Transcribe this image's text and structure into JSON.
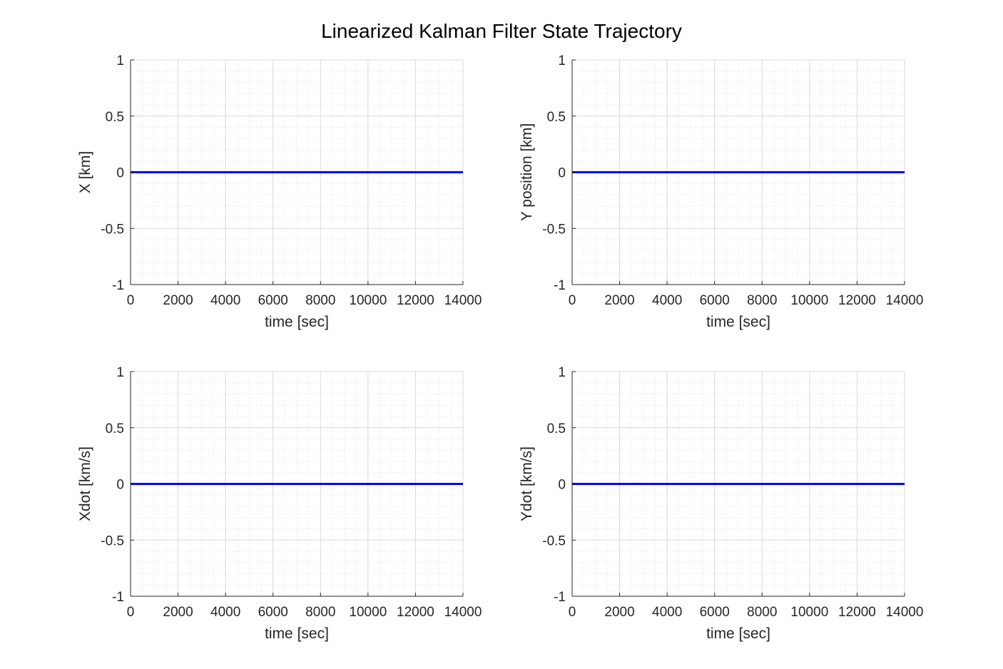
{
  "figure": {
    "title": "Linearized Kalman Filter State Trajectory"
  },
  "colors": {
    "series": "#0000ff",
    "axis": "#262626",
    "grid": "#d9d9d9",
    "background": "#ffffff"
  },
  "chart_data": [
    {
      "type": "line",
      "subplot": "top-left",
      "title": "",
      "xlabel": "time [sec]",
      "ylabel": "X [km]",
      "xlim": [
        0,
        14000
      ],
      "ylim": [
        -1,
        1
      ],
      "xticks": [
        0,
        2000,
        4000,
        6000,
        8000,
        10000,
        12000,
        14000
      ],
      "xtick_labels": [
        "0",
        "2000",
        "4000",
        "6000",
        "8000",
        "10000",
        "12000",
        "14000"
      ],
      "yticks": [
        1,
        0.5,
        0,
        -0.5,
        -1
      ],
      "ytick_labels": [
        "1",
        "0.5",
        "0",
        "-0.5",
        "-1"
      ],
      "grid": true,
      "minor_grid": true,
      "series": [
        {
          "x": [
            0,
            14000
          ],
          "y": [
            0,
            0
          ],
          "color": "#0000ff"
        }
      ]
    },
    {
      "type": "line",
      "subplot": "top-right",
      "title": "",
      "xlabel": "time [sec]",
      "ylabel": "Y position [km]",
      "xlim": [
        0,
        14000
      ],
      "ylim": [
        -1,
        1
      ],
      "xticks": [
        0,
        2000,
        4000,
        6000,
        8000,
        10000,
        12000,
        14000
      ],
      "xtick_labels": [
        "0",
        "2000",
        "4000",
        "6000",
        "8000",
        "10000",
        "12000",
        "14000"
      ],
      "yticks": [
        1,
        0.5,
        0,
        -0.5,
        -1
      ],
      "ytick_labels": [
        "1",
        "0.5",
        "0",
        "-0.5",
        "-1"
      ],
      "grid": true,
      "minor_grid": true,
      "series": [
        {
          "x": [
            0,
            14000
          ],
          "y": [
            0,
            0
          ],
          "color": "#0000ff"
        }
      ]
    },
    {
      "type": "line",
      "subplot": "bottom-left",
      "title": "",
      "xlabel": "time [sec]",
      "ylabel": "Xdot [km/s]",
      "xlim": [
        0,
        14000
      ],
      "ylim": [
        -1,
        1
      ],
      "xticks": [
        0,
        2000,
        4000,
        6000,
        8000,
        10000,
        12000,
        14000
      ],
      "xtick_labels": [
        "0",
        "2000",
        "4000",
        "6000",
        "8000",
        "10000",
        "12000",
        "14000"
      ],
      "yticks": [
        1,
        0.5,
        0,
        -0.5,
        -1
      ],
      "ytick_labels": [
        "1",
        "0.5",
        "0",
        "-0.5",
        "-1"
      ],
      "grid": true,
      "minor_grid": true,
      "series": [
        {
          "x": [
            0,
            14000
          ],
          "y": [
            0,
            0
          ],
          "color": "#0000ff"
        }
      ]
    },
    {
      "type": "line",
      "subplot": "bottom-right",
      "title": "",
      "xlabel": "time [sec]",
      "ylabel": "Ydot [km/s]",
      "xlim": [
        0,
        14000
      ],
      "ylim": [
        -1,
        1
      ],
      "xticks": [
        0,
        2000,
        4000,
        6000,
        8000,
        10000,
        12000,
        14000
      ],
      "xtick_labels": [
        "0",
        "2000",
        "4000",
        "6000",
        "8000",
        "10000",
        "12000",
        "14000"
      ],
      "yticks": [
        1,
        0.5,
        0,
        -0.5,
        -1
      ],
      "ytick_labels": [
        "1",
        "0.5",
        "0",
        "-0.5",
        "-1"
      ],
      "grid": true,
      "minor_grid": true,
      "series": [
        {
          "x": [
            0,
            14000
          ],
          "y": [
            0,
            0
          ],
          "color": "#0000ff"
        }
      ]
    }
  ]
}
